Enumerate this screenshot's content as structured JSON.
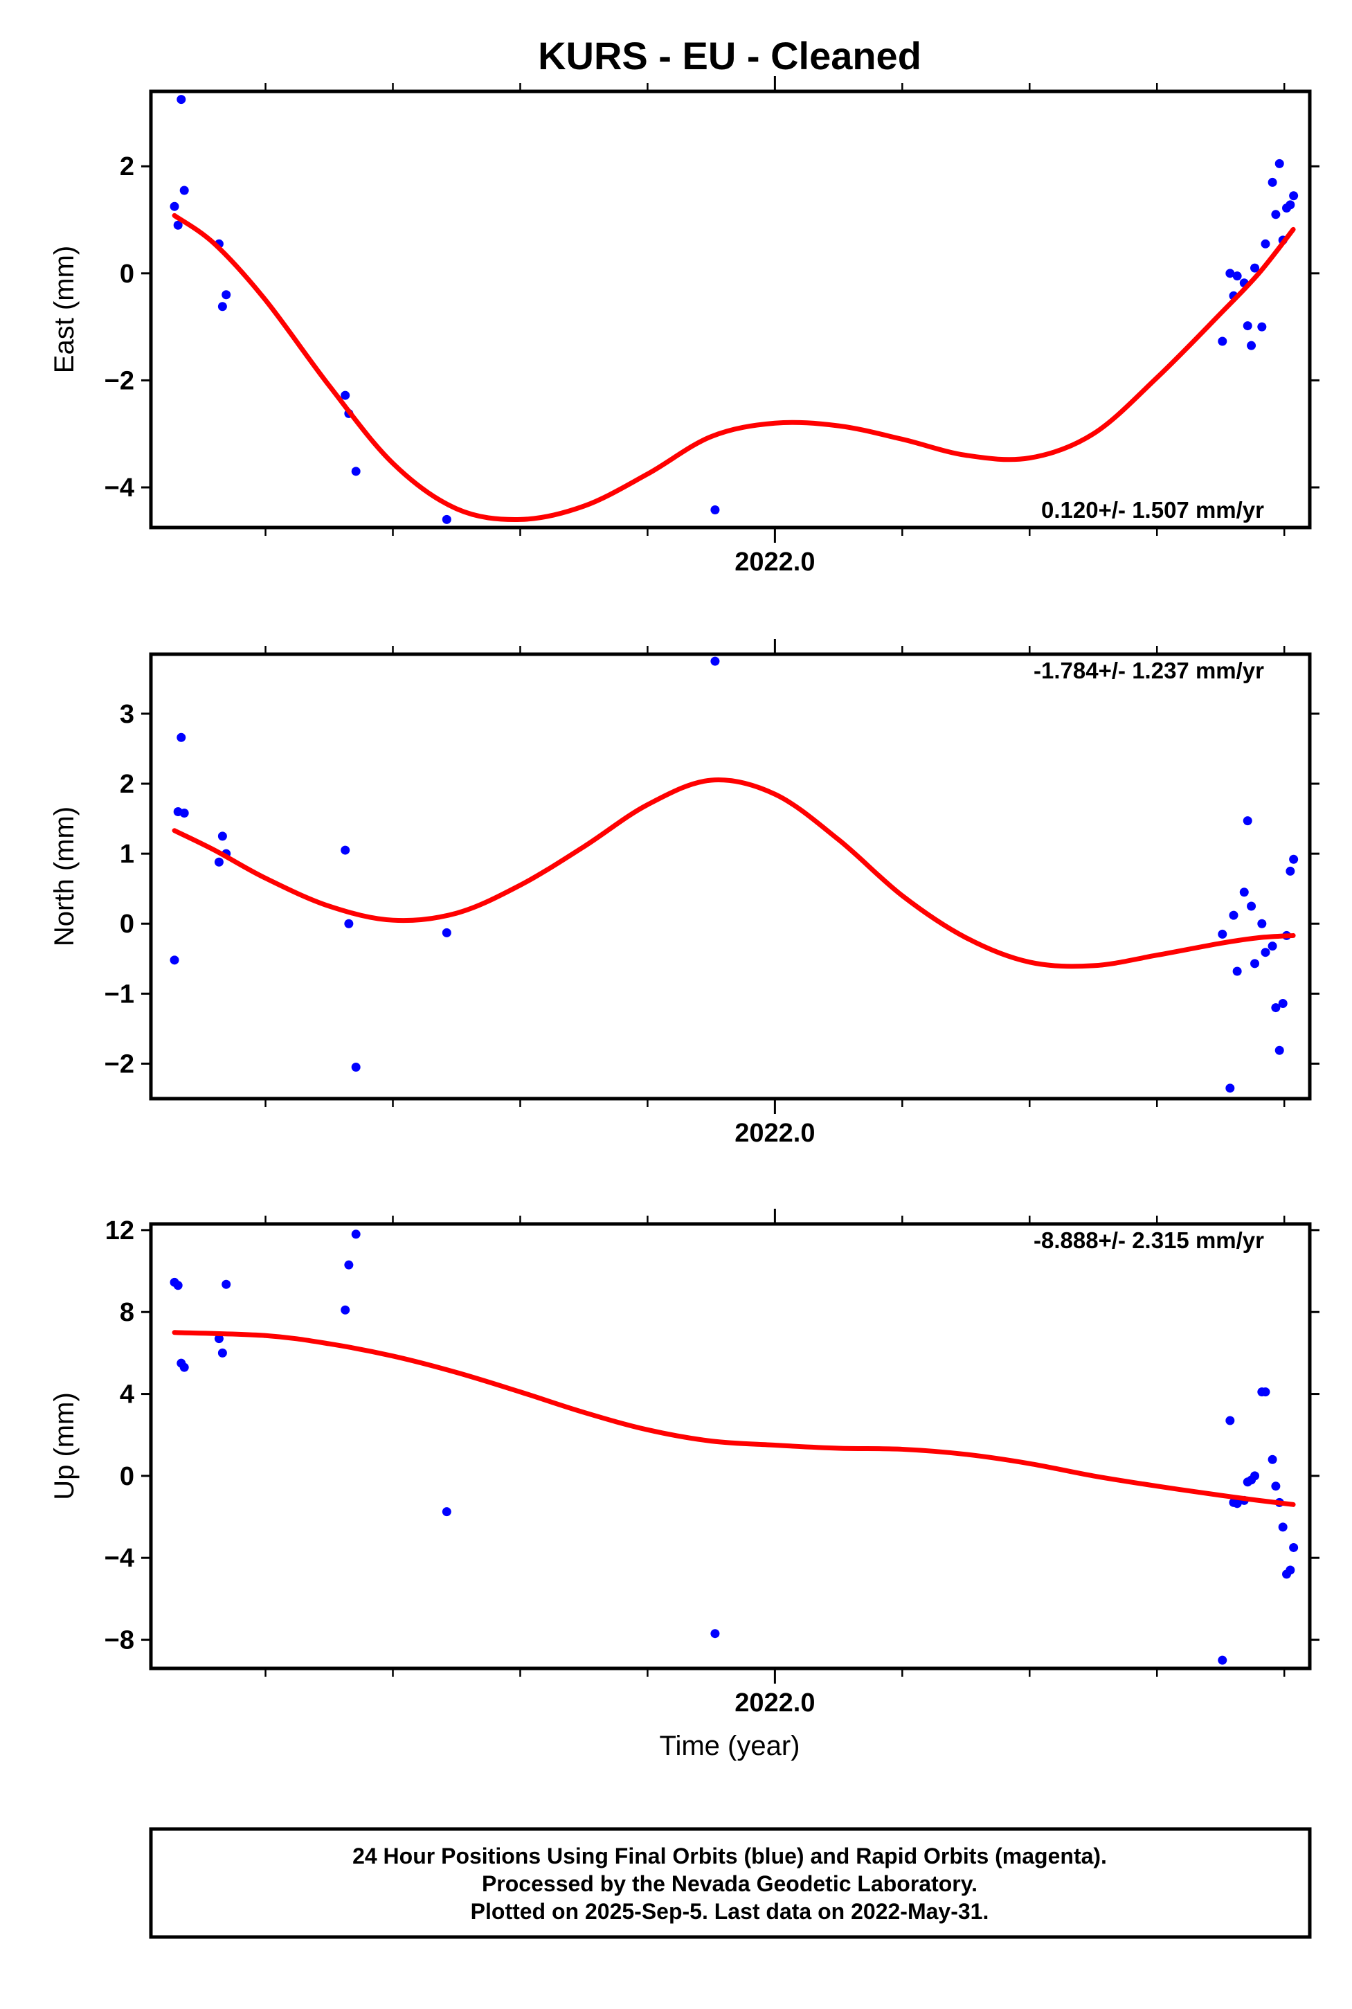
{
  "title": "KURS  - EU - Cleaned",
  "x_axis_label": "Time (year)",
  "footer": {
    "line1": "24 Hour Positions Using Final Orbits (blue) and Rapid Orbits (magenta).",
    "line2": "Processed by the Nevada Geodetic Laboratory.",
    "line3": "Plotted on 2025-Sep-5. Last data on 2022-May-31."
  },
  "colors": {
    "points": "#0000ff",
    "fit": "#ff0000",
    "frame": "#000000"
  },
  "chart_data": [
    {
      "type": "scatter",
      "ylabel": "East (mm)",
      "xtick_label": "2022.0",
      "xlim": [
        2021.51,
        2022.42
      ],
      "ylim": [
        -4.75,
        3.4
      ],
      "yticks": [
        -4,
        -2,
        0,
        2
      ],
      "ytick_labels": [
        "−4",
        "−2",
        "0",
        "2"
      ],
      "rate_text": "0.120+/- 1.507 mm/yr",
      "points": [
        [
          2021.5285,
          1.25
        ],
        [
          2021.5313,
          0.9
        ],
        [
          2021.5338,
          3.25
        ],
        [
          2021.5362,
          1.55
        ],
        [
          2021.5635,
          0.55
        ],
        [
          2021.5662,
          -0.62
        ],
        [
          2021.5691,
          -0.4
        ],
        [
          2021.6626,
          -2.28
        ],
        [
          2021.6654,
          -2.62
        ],
        [
          2021.671,
          -3.7
        ],
        [
          2021.7423,
          -4.6
        ],
        [
          2021.953,
          -4.42
        ],
        [
          2022.3514,
          -1.27
        ],
        [
          2022.3574,
          0.0
        ],
        [
          2022.3602,
          -0.42
        ],
        [
          2022.363,
          -0.05
        ],
        [
          2022.3685,
          -0.18
        ],
        [
          2022.3712,
          -0.98
        ],
        [
          2022.3741,
          -1.35
        ],
        [
          2022.3768,
          0.1
        ],
        [
          2022.3824,
          -1.0
        ],
        [
          2022.3852,
          0.55
        ],
        [
          2022.3907,
          1.7
        ],
        [
          2022.3933,
          1.1
        ],
        [
          2022.3962,
          2.05
        ],
        [
          2022.3989,
          0.62
        ],
        [
          2022.4018,
          1.22
        ],
        [
          2022.4047,
          1.28
        ],
        [
          2022.4073,
          1.45
        ]
      ],
      "fit": [
        [
          2021.5285,
          1.08
        ],
        [
          2021.56,
          0.55
        ],
        [
          2021.6,
          -0.5
        ],
        [
          2021.65,
          -2.1
        ],
        [
          2021.7,
          -3.55
        ],
        [
          2021.75,
          -4.4
        ],
        [
          2021.8,
          -4.6
        ],
        [
          2021.85,
          -4.35
        ],
        [
          2021.9,
          -3.75
        ],
        [
          2021.95,
          -3.05
        ],
        [
          2022.0,
          -2.8
        ],
        [
          2022.05,
          -2.85
        ],
        [
          2022.1,
          -3.1
        ],
        [
          2022.15,
          -3.4
        ],
        [
          2022.2,
          -3.45
        ],
        [
          2022.25,
          -3.0
        ],
        [
          2022.3,
          -1.95
        ],
        [
          2022.35,
          -0.75
        ],
        [
          2022.38,
          0.0
        ],
        [
          2022.407,
          0.82
        ]
      ]
    },
    {
      "type": "scatter",
      "ylabel": "North (mm)",
      "xtick_label": "2022.0",
      "xlim": [
        2021.51,
        2022.42
      ],
      "ylim": [
        -2.5,
        3.85
      ],
      "yticks": [
        -2,
        -1,
        0,
        1,
        2,
        3
      ],
      "ytick_labels": [
        "−2",
        "−1",
        "0",
        "1",
        "2",
        "3"
      ],
      "rate_text": "-1.784+/- 1.237 mm/yr",
      "points": [
        [
          2021.5285,
          -0.52
        ],
        [
          2021.5313,
          1.6
        ],
        [
          2021.5338,
          2.66
        ],
        [
          2021.5362,
          1.58
        ],
        [
          2021.5635,
          0.88
        ],
        [
          2021.5662,
          1.25
        ],
        [
          2021.5691,
          1.0
        ],
        [
          2021.6626,
          1.05
        ],
        [
          2021.6654,
          0.0
        ],
        [
          2021.671,
          -2.05
        ],
        [
          2021.7423,
          -0.13
        ],
        [
          2021.953,
          3.75
        ],
        [
          2022.3514,
          -0.15
        ],
        [
          2022.3574,
          -2.35
        ],
        [
          2022.3602,
          0.12
        ],
        [
          2022.363,
          -0.68
        ],
        [
          2022.3685,
          0.45
        ],
        [
          2022.3712,
          1.47
        ],
        [
          2022.3741,
          0.25
        ],
        [
          2022.3768,
          -0.57
        ],
        [
          2022.3824,
          0.0
        ],
        [
          2022.3852,
          -0.41
        ],
        [
          2022.3907,
          -0.32
        ],
        [
          2022.3933,
          -1.2
        ],
        [
          2022.3962,
          -1.81
        ],
        [
          2022.3989,
          -1.14
        ],
        [
          2022.4018,
          -0.17
        ],
        [
          2022.4047,
          0.75
        ],
        [
          2022.4073,
          0.92
        ]
      ],
      "fit": [
        [
          2021.5285,
          1.33
        ],
        [
          2021.56,
          1.05
        ],
        [
          2021.6,
          0.65
        ],
        [
          2021.65,
          0.25
        ],
        [
          2021.7,
          0.05
        ],
        [
          2021.75,
          0.15
        ],
        [
          2021.8,
          0.55
        ],
        [
          2021.85,
          1.1
        ],
        [
          2021.9,
          1.7
        ],
        [
          2021.95,
          2.05
        ],
        [
          2022.0,
          1.85
        ],
        [
          2022.05,
          1.2
        ],
        [
          2022.1,
          0.4
        ],
        [
          2022.15,
          -0.2
        ],
        [
          2022.2,
          -0.55
        ],
        [
          2022.25,
          -0.6
        ],
        [
          2022.3,
          -0.45
        ],
        [
          2022.35,
          -0.28
        ],
        [
          2022.38,
          -0.2
        ],
        [
          2022.407,
          -0.17
        ]
      ]
    },
    {
      "type": "scatter",
      "ylabel": "Up (mm)",
      "xtick_label": "2022.0",
      "xlim": [
        2021.51,
        2022.42
      ],
      "ylim": [
        -9.4,
        12.3
      ],
      "yticks": [
        -8,
        -4,
        0,
        4,
        8,
        12
      ],
      "ytick_labels": [
        "−8",
        "−4",
        "0",
        "4",
        "8",
        "12"
      ],
      "rate_text": "-8.888+/- 2.315 mm/yr",
      "points": [
        [
          2021.5285,
          9.45
        ],
        [
          2021.5313,
          9.3
        ],
        [
          2021.5338,
          5.5
        ],
        [
          2021.5362,
          5.3
        ],
        [
          2021.5635,
          6.7
        ],
        [
          2021.5662,
          6.0
        ],
        [
          2021.5691,
          9.35
        ],
        [
          2021.6626,
          8.1
        ],
        [
          2021.6654,
          10.3
        ],
        [
          2021.671,
          11.8
        ],
        [
          2021.7423,
          -1.75
        ],
        [
          2021.953,
          -7.7
        ],
        [
          2022.3514,
          -9.0
        ],
        [
          2022.3574,
          2.7
        ],
        [
          2022.3602,
          -1.3
        ],
        [
          2022.363,
          -1.35
        ],
        [
          2022.3685,
          -1.2
        ],
        [
          2022.3712,
          -0.3
        ],
        [
          2022.3741,
          -0.2
        ],
        [
          2022.3768,
          0.0
        ],
        [
          2022.3824,
          4.1
        ],
        [
          2022.3852,
          4.1
        ],
        [
          2022.3907,
          0.8
        ],
        [
          2022.3933,
          -0.5
        ],
        [
          2022.3962,
          -1.3
        ],
        [
          2022.3989,
          -2.5
        ],
        [
          2022.4018,
          -4.8
        ],
        [
          2022.4047,
          -4.6
        ],
        [
          2022.4073,
          -3.5
        ]
      ],
      "fit": [
        [
          2021.5285,
          7.0
        ],
        [
          2021.6,
          6.85
        ],
        [
          2021.65,
          6.45
        ],
        [
          2021.7,
          5.85
        ],
        [
          2021.75,
          5.05
        ],
        [
          2021.8,
          4.1
        ],
        [
          2021.85,
          3.1
        ],
        [
          2021.9,
          2.25
        ],
        [
          2021.95,
          1.7
        ],
        [
          2022.0,
          1.5
        ],
        [
          2022.05,
          1.35
        ],
        [
          2022.1,
          1.3
        ],
        [
          2022.15,
          1.05
        ],
        [
          2022.2,
          0.6
        ],
        [
          2022.25,
          0.0
        ],
        [
          2022.3,
          -0.5
        ],
        [
          2022.35,
          -0.95
        ],
        [
          2022.38,
          -1.2
        ],
        [
          2022.407,
          -1.4
        ]
      ]
    }
  ]
}
